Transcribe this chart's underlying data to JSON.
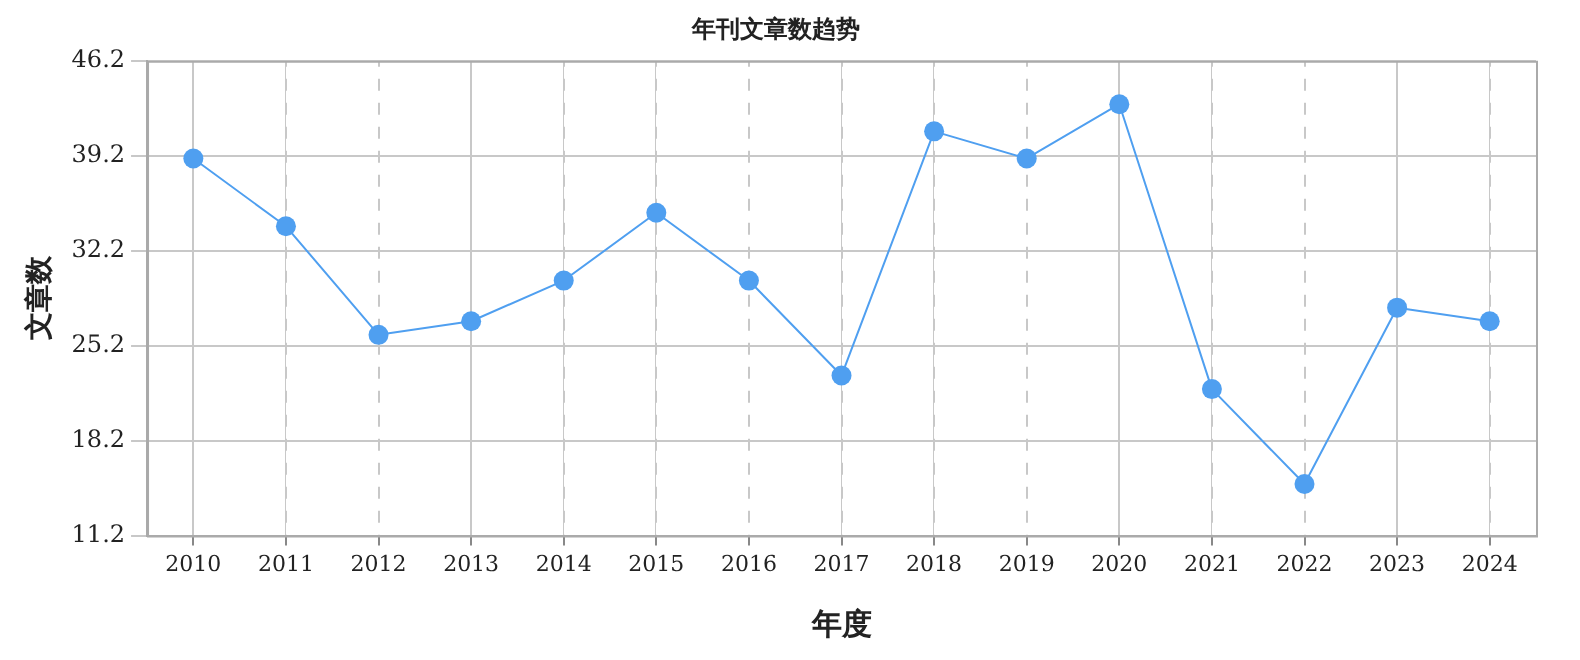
{
  "chart_data": {
    "type": "line",
    "title": "年刊文章数趋势",
    "xlabel": "年度",
    "ylabel": "文章数",
    "categories": [
      "2010",
      "2011",
      "2012",
      "2013",
      "2014",
      "2015",
      "2016",
      "2017",
      "2018",
      "2019",
      "2020",
      "2021",
      "2022",
      "2023",
      "2024"
    ],
    "series": [
      {
        "color": "#4f9ff0",
        "values": [
          39,
          34,
          26,
          27,
          30,
          35,
          30,
          23,
          41,
          39,
          43,
          22,
          15,
          28,
          27
        ]
      }
    ],
    "ylim": [
      11.2,
      46.2
    ],
    "yticks": [
      11.2,
      18.2,
      25.2,
      32.2,
      39.2,
      46.2
    ],
    "grid": true,
    "legend": false,
    "marker": "circle",
    "line_style": "solid"
  }
}
